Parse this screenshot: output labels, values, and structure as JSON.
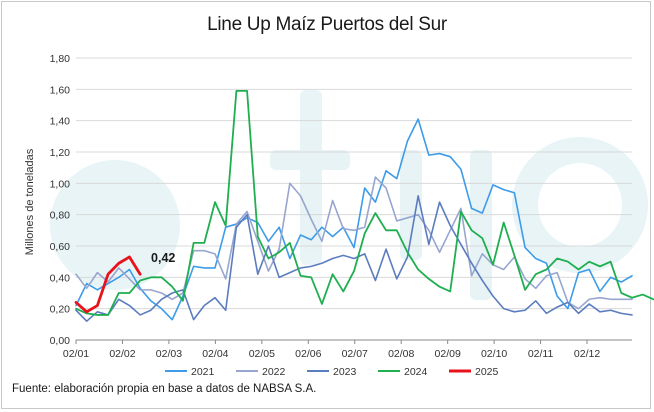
{
  "chart_data": {
    "type": "line",
    "title": "Line Up Maíz Puertos del Sur",
    "ylabel": "Millones de toneladas",
    "source": "Fuente: elaboración propia en base a datos de NABSA S.A.",
    "ylim": [
      0,
      1.8
    ],
    "yticks": [
      "0,00",
      "0,20",
      "0,40",
      "0,60",
      "0,80",
      "1,00",
      "1,20",
      "1,40",
      "1,60",
      "1,80"
    ],
    "xticks": [
      "02/01",
      "02/02",
      "02/03",
      "02/04",
      "02/05",
      "02/06",
      "02/07",
      "02/08",
      "02/09",
      "02/10",
      "02/11",
      "02/12"
    ],
    "week_range": [
      0,
      52
    ],
    "grid": "horizontal",
    "legend_position": "bottom",
    "annotation": {
      "text": "0,42",
      "series": "2025",
      "week": 7.3
    },
    "series": [
      {
        "name": "2021",
        "color": "#3d9be9",
        "width": 1.6,
        "values": [
          0.22,
          0.36,
          0.32,
          0.36,
          0.4,
          0.45,
          0.33,
          0.25,
          0.2,
          0.13,
          0.28,
          0.47,
          0.46,
          0.46,
          0.72,
          0.74,
          0.78,
          0.75,
          0.63,
          0.72,
          0.52,
          0.67,
          0.64,
          0.72,
          0.66,
          0.72,
          0.59,
          0.97,
          0.88,
          1.08,
          1.03,
          1.27,
          1.41,
          1.18,
          1.19,
          1.17,
          1.09,
          0.84,
          0.81,
          0.99,
          0.96,
          0.94,
          0.59,
          0.52,
          0.49,
          0.28,
          0.2,
          0.43,
          0.45,
          0.31,
          0.4,
          0.37,
          0.41
        ]
      },
      {
        "name": "2022",
        "color": "#98a6cf",
        "width": 1.6,
        "values": [
          0.42,
          0.33,
          0.43,
          0.37,
          0.46,
          0.39,
          0.32,
          0.32,
          0.3,
          0.26,
          0.3,
          0.57,
          0.57,
          0.55,
          0.39,
          0.74,
          0.82,
          0.63,
          0.44,
          0.58,
          1.0,
          0.92,
          0.77,
          0.63,
          0.89,
          0.71,
          0.7,
          0.72,
          1.04,
          0.97,
          0.76,
          0.78,
          0.8,
          0.7,
          0.56,
          0.7,
          0.84,
          0.41,
          0.55,
          0.48,
          0.45,
          0.53,
          0.39,
          0.33,
          0.41,
          0.43,
          0.24,
          0.2,
          0.26,
          0.27,
          0.26,
          0.26,
          0.26
        ]
      },
      {
        "name": "2023",
        "color": "#5b7dbf",
        "width": 1.6,
        "values": [
          0.19,
          0.12,
          0.18,
          0.16,
          0.26,
          0.22,
          0.16,
          0.19,
          0.26,
          0.3,
          0.32,
          0.13,
          0.22,
          0.27,
          0.19,
          0.72,
          0.8,
          0.42,
          0.6,
          0.4,
          0.43,
          0.46,
          0.47,
          0.49,
          0.52,
          0.54,
          0.52,
          0.55,
          0.38,
          0.58,
          0.39,
          0.53,
          0.92,
          0.61,
          0.88,
          0.73,
          0.61,
          0.49,
          0.38,
          0.28,
          0.2,
          0.18,
          0.19,
          0.25,
          0.17,
          0.21,
          0.24,
          0.17,
          0.23,
          0.18,
          0.19,
          0.17,
          0.16
        ]
      },
      {
        "name": "2024",
        "color": "#1fae50",
        "width": 1.8,
        "values": [
          0.2,
          0.17,
          0.16,
          0.16,
          0.3,
          0.3,
          0.38,
          0.4,
          0.4,
          0.34,
          0.25,
          0.62,
          0.62,
          0.88,
          0.73,
          1.59,
          1.59,
          0.66,
          0.52,
          0.56,
          0.62,
          0.41,
          0.4,
          0.23,
          0.42,
          0.31,
          0.44,
          0.68,
          0.81,
          0.7,
          0.7,
          0.56,
          0.45,
          0.39,
          0.34,
          0.31,
          0.82,
          0.7,
          0.65,
          0.48,
          0.75,
          0.54,
          0.32,
          0.42,
          0.45,
          0.52,
          0.5,
          0.45,
          0.5,
          0.47,
          0.5,
          0.3,
          0.27,
          0.29,
          0.26
        ]
      },
      {
        "name": "2025",
        "color": "#e8121b",
        "width": 2.8,
        "values": [
          0.24,
          0.18,
          0.22,
          0.42,
          0.49,
          0.53,
          0.42
        ]
      }
    ]
  }
}
